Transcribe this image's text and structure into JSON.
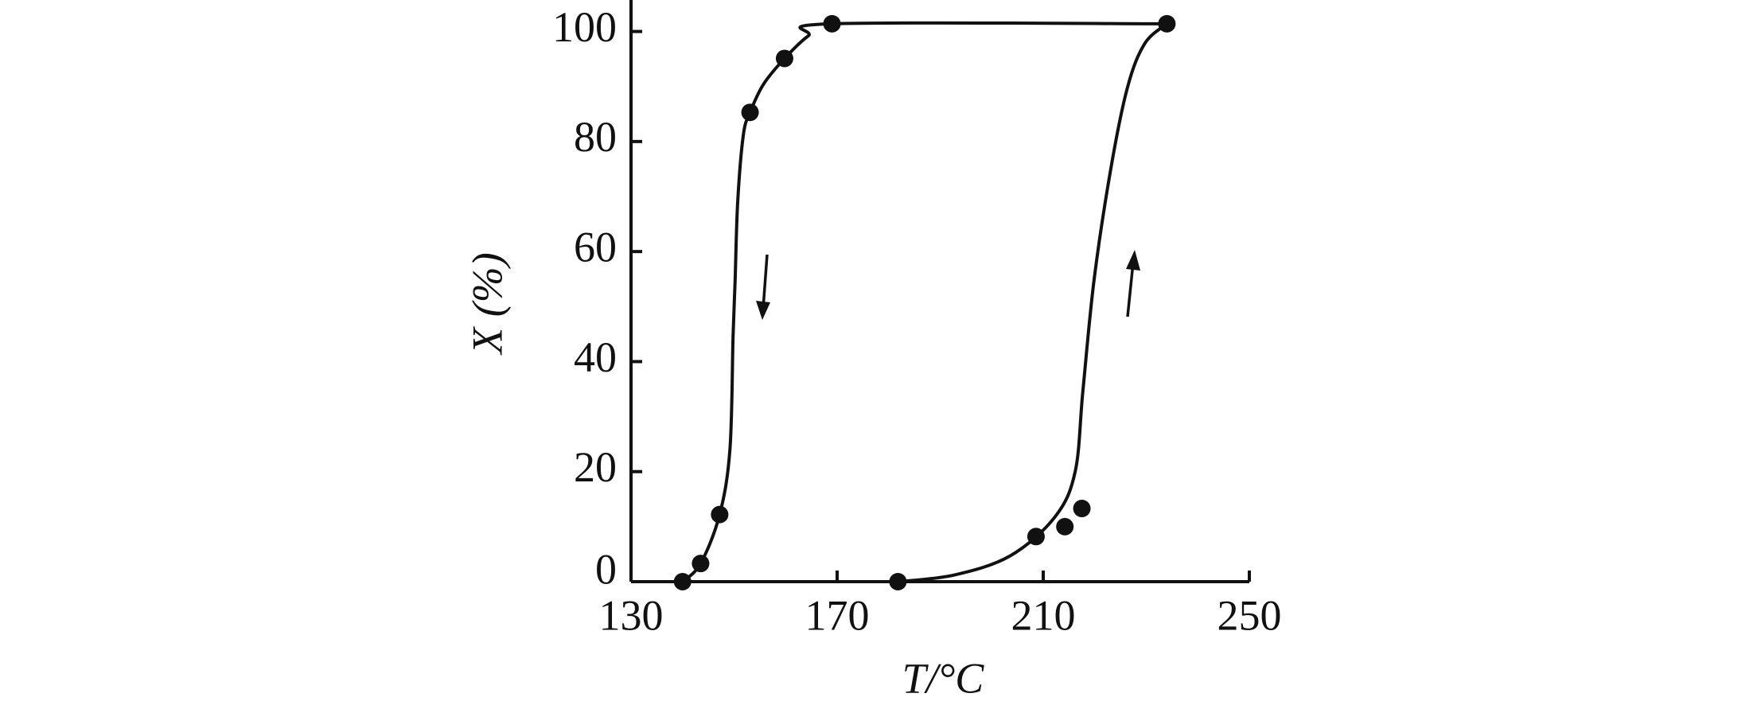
{
  "chart_data": {
    "type": "scatter",
    "x_label": "T/°C",
    "y_label": "X (%)",
    "xlim": [
      130,
      250
    ],
    "ylim": [
      0,
      105
    ],
    "xticks": [
      130,
      170,
      210,
      250
    ],
    "yticks": [
      0,
      20,
      40,
      60,
      80,
      100
    ],
    "color": "#111111",
    "series": [
      {
        "x": [
          140,
          143.5,
          147.2,
          153.1,
          159.8,
          169,
          181.8,
          208.6,
          214.2,
          217.5,
          234
        ],
        "values": [
          0,
          3.3,
          12.2,
          85.3,
          95.1,
          101.4,
          0,
          8.2,
          10,
          13.3,
          101.4
        ]
      }
    ],
    "curves": [
      {
        "x": [
          140,
          143.5,
          147.2,
          149.2,
          149.8,
          150.2,
          150.7,
          151.8,
          153.1,
          155.7,
          159.8,
          164.4,
          169,
          234
        ],
        "values": [
          0,
          3.3,
          12.2,
          24.1,
          44.5,
          54.7,
          69,
          81.2,
          85.3,
          90.4,
          95.1,
          99.2,
          101.4,
          101.4
        ]
      },
      {
        "x": [
          181.8,
          192.7,
          203.6,
          212.3,
          216.2,
          217.7,
          219.9,
          223.2,
          226.4,
          229.7,
          234
        ],
        "values": [
          0,
          1.2,
          4.7,
          11.8,
          20,
          34.7,
          55.1,
          75.5,
          90,
          97.8,
          101.4
        ]
      }
    ]
  }
}
